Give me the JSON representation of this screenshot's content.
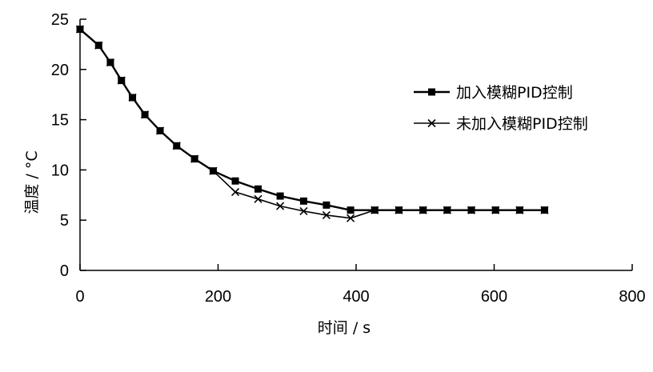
{
  "chart_data": {
    "type": "line",
    "xlabel": "时间 / s",
    "ylabel": "温度 / °C",
    "xlim": [
      0,
      800
    ],
    "ylim": [
      0,
      25
    ],
    "x_ticks": [
      0,
      200,
      400,
      600,
      800
    ],
    "y_ticks": [
      0,
      5,
      10,
      15,
      20,
      25
    ],
    "grid": false,
    "legend_position": "right",
    "series": [
      {
        "name": "加入模糊PID控制",
        "marker": "filled-square",
        "x": [
          0,
          27,
          44,
          60,
          76,
          94,
          116,
          140,
          166,
          193,
          225,
          258,
          290,
          324,
          357,
          392,
          427,
          462,
          497,
          532,
          567,
          602,
          637,
          673
        ],
        "y": [
          24.0,
          22.4,
          20.7,
          18.9,
          17.2,
          15.5,
          13.9,
          12.4,
          11.1,
          9.9,
          8.9,
          8.1,
          7.4,
          6.9,
          6.5,
          6.0,
          6.0,
          6.0,
          6.0,
          6.0,
          6.0,
          6.0,
          6.0,
          6.0
        ]
      },
      {
        "name": "未加入模糊PID控制",
        "marker": "x",
        "x": [
          0,
          27,
          44,
          60,
          76,
          94,
          116,
          140,
          166,
          193,
          225,
          258,
          290,
          324,
          357,
          392,
          427,
          462,
          497,
          532,
          567,
          602,
          637,
          673
        ],
        "y": [
          24.0,
          22.4,
          20.7,
          18.9,
          17.2,
          15.5,
          13.9,
          12.4,
          11.1,
          9.9,
          7.8,
          7.1,
          6.4,
          5.9,
          5.5,
          5.2,
          6.0,
          6.0,
          6.0,
          6.0,
          6.0,
          6.0,
          6.0,
          6.0
        ]
      }
    ]
  }
}
